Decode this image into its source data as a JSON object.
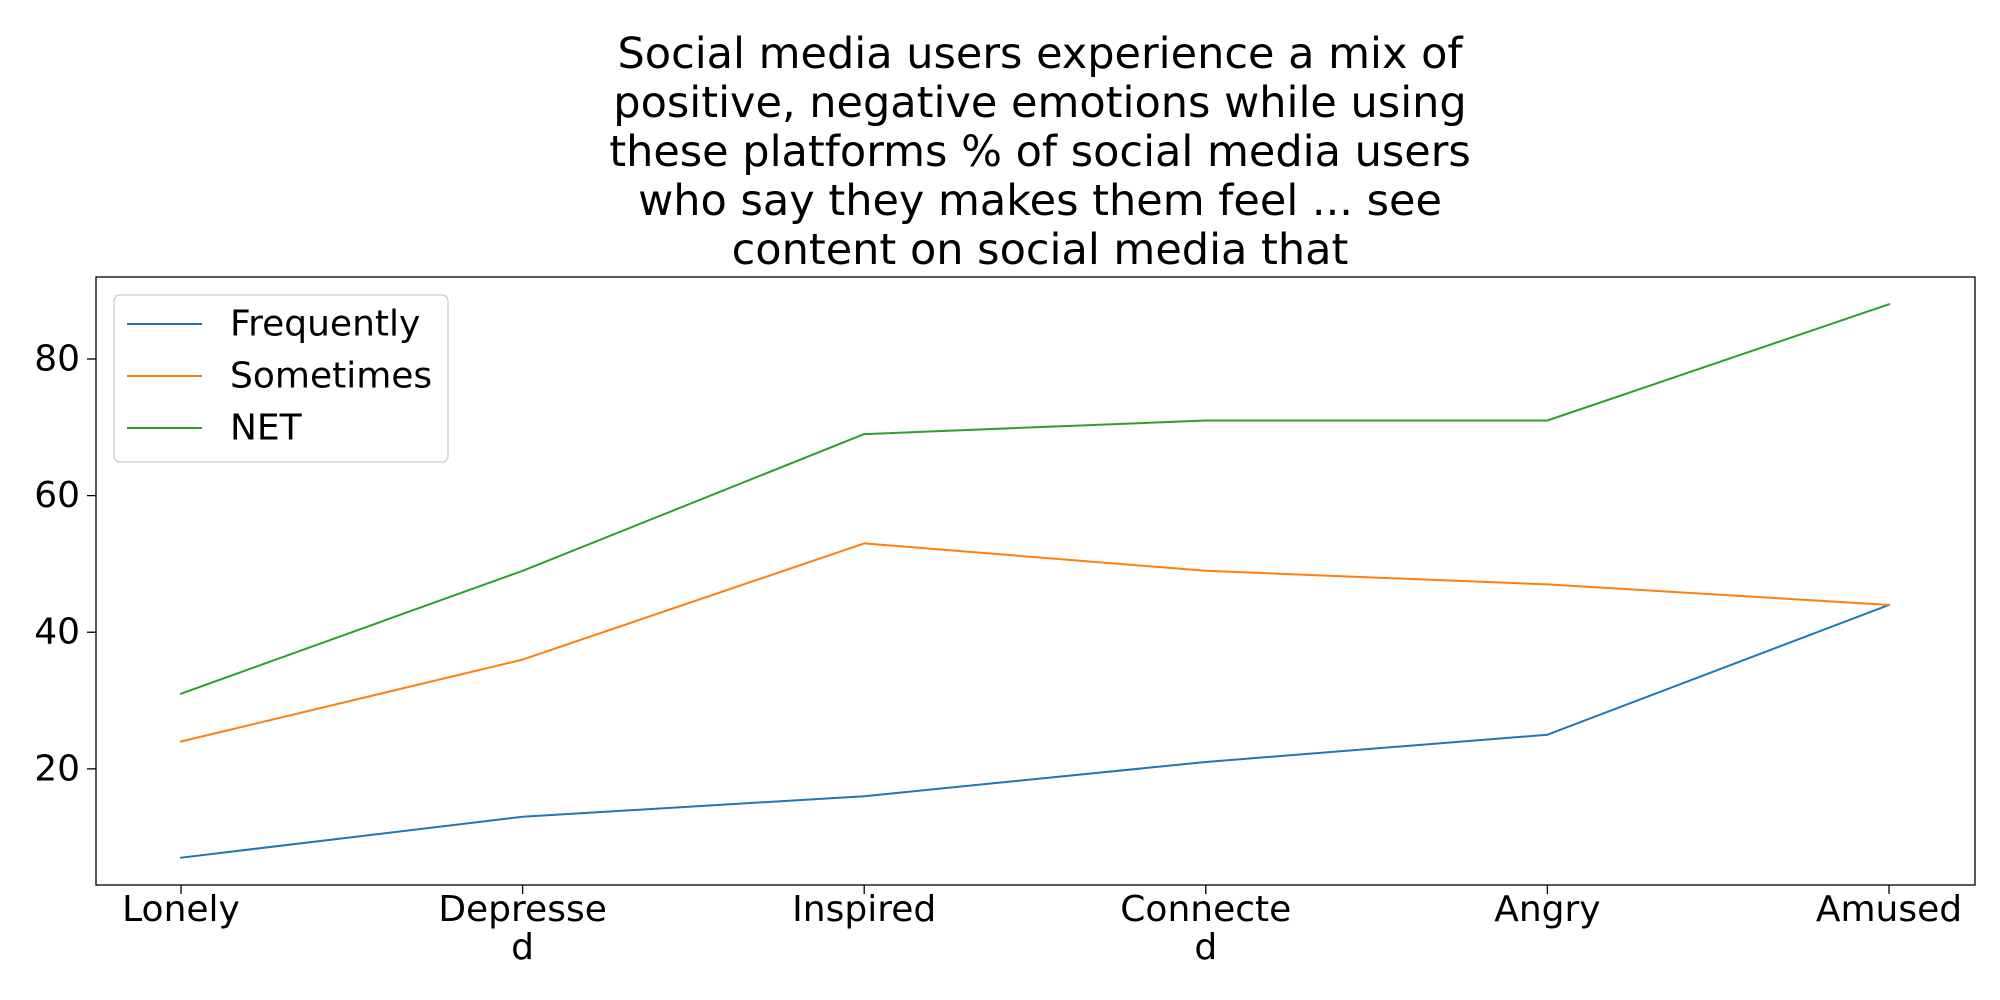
{
  "chart_data": {
    "type": "line",
    "title_lines": [
      "Social media users experience a mix of",
      "positive, negative emotions while using",
      "these platforms % of social media users",
      "who say they makes them feel ... see",
      "content on social media that"
    ],
    "categories": [
      [
        "Lonely"
      ],
      [
        "Depresse",
        "d"
      ],
      [
        "Inspired"
      ],
      [
        "Connecte",
        "d"
      ],
      [
        "Angry"
      ],
      [
        "Amused"
      ]
    ],
    "series": [
      {
        "name": "Frequently",
        "color": "#1f77b4",
        "values": [
          7,
          13,
          16,
          21,
          25,
          44
        ]
      },
      {
        "name": "Sometimes",
        "color": "#ff7f0e",
        "values": [
          24,
          36,
          53,
          49,
          47,
          44
        ]
      },
      {
        "name": "NET",
        "color": "#2ca02c",
        "values": [
          31,
          49,
          69,
          71,
          71,
          88
        ]
      }
    ],
    "yticks": [
      20,
      40,
      60,
      80
    ],
    "ylim": [
      3,
      92
    ],
    "grid": false,
    "legend_position": "top-left",
    "xlabel": "",
    "ylabel": ""
  }
}
